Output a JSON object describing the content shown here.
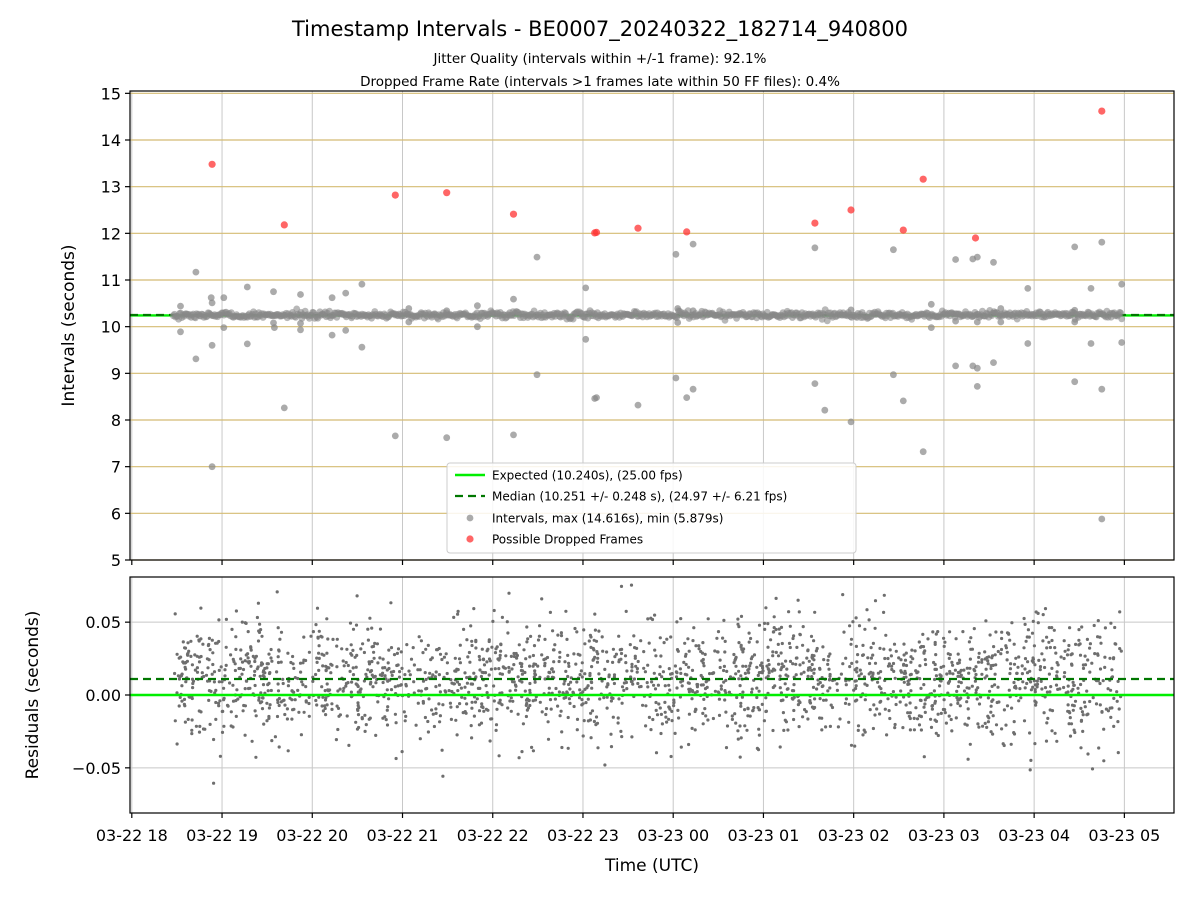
{
  "chart_data": {
    "type": "scatter",
    "title": "Timestamp Intervals - BE0007_20240322_182714_940800",
    "subtitle_lines": [
      "Jitter Quality (intervals within +/-1 frame): 92.1%",
      "Dropped Frame Rate (intervals >1 frames late within 50 FF files): 0.4%"
    ],
    "xlabel": "Time (UTC)",
    "x_tick_labels": [
      "03-22 18",
      "03-22 19",
      "03-22 20",
      "03-22 21",
      "03-22 22",
      "03-22 23",
      "03-23 00",
      "03-23 01",
      "03-23 02",
      "03-23 03",
      "03-23 04",
      "03-23 05"
    ],
    "x_ticks_hours": [
      18,
      19,
      20,
      21,
      22,
      23,
      24,
      25,
      26,
      27,
      28,
      29
    ],
    "xlim_hours": [
      17.98,
      29.55
    ],
    "data_range_hours": [
      18.46,
      28.97
    ],
    "top": {
      "ylabel": "Intervals (seconds)",
      "ylim": [
        5,
        15.05
      ],
      "y_ticks": [
        5,
        6,
        7,
        8,
        9,
        10,
        11,
        12,
        13,
        14,
        15
      ],
      "expected": 10.24,
      "median": 10.251,
      "legend": [
        "Expected (10.240s), (25.00 fps)",
        "Median (10.251 +/- 0.248 s), (24.97 +/- 6.21 fps)",
        "Intervals, max (14.616s), min (5.879s)",
        "Possible Dropped Frames"
      ],
      "legend_position": "lower-center",
      "dropped_frames": [
        [
          18.89,
          13.48
        ],
        [
          19.69,
          12.18
        ],
        [
          20.92,
          12.82
        ],
        [
          21.49,
          12.87
        ],
        [
          22.23,
          12.41
        ],
        [
          23.13,
          12.01
        ],
        [
          23.15,
          12.02
        ],
        [
          23.61,
          12.11
        ],
        [
          24.15,
          12.03
        ],
        [
          25.57,
          12.22
        ],
        [
          25.97,
          12.5
        ],
        [
          26.55,
          12.07
        ],
        [
          26.77,
          13.16
        ],
        [
          27.35,
          11.9
        ],
        [
          28.75,
          14.62
        ]
      ],
      "outliers": [
        [
          18.54,
          10.44
        ],
        [
          18.54,
          9.89
        ],
        [
          18.71,
          11.17
        ],
        [
          18.71,
          9.31
        ],
        [
          18.88,
          10.62
        ],
        [
          18.89,
          10.51
        ],
        [
          18.89,
          9.6
        ],
        [
          18.89,
          7.0
        ],
        [
          19.02,
          10.62
        ],
        [
          19.02,
          9.98
        ],
        [
          19.28,
          10.85
        ],
        [
          19.28,
          9.63
        ],
        [
          19.57,
          10.75
        ],
        [
          19.57,
          10.08
        ],
        [
          19.58,
          9.98
        ],
        [
          19.69,
          8.26
        ],
        [
          19.87,
          10.69
        ],
        [
          19.87,
          10.07
        ],
        [
          19.87,
          9.93
        ],
        [
          20.22,
          10.62
        ],
        [
          20.22,
          9.82
        ],
        [
          20.37,
          10.72
        ],
        [
          20.37,
          9.92
        ],
        [
          20.55,
          10.91
        ],
        [
          20.55,
          9.56
        ],
        [
          20.92,
          7.66
        ],
        [
          21.07,
          10.39
        ],
        [
          21.07,
          10.1
        ],
        [
          21.49,
          10.34
        ],
        [
          21.49,
          7.62
        ],
        [
          21.83,
          10.45
        ],
        [
          21.83,
          10.0
        ],
        [
          22.23,
          10.59
        ],
        [
          22.23,
          7.68
        ],
        [
          22.49,
          11.49
        ],
        [
          22.49,
          8.97
        ],
        [
          23.03,
          10.83
        ],
        [
          23.03,
          9.73
        ],
        [
          23.13,
          8.46
        ],
        [
          23.15,
          8.48
        ],
        [
          23.61,
          8.32
        ],
        [
          24.03,
          11.55
        ],
        [
          24.03,
          8.9
        ],
        [
          24.05,
          10.39
        ],
        [
          24.05,
          10.09
        ],
        [
          24.15,
          8.48
        ],
        [
          24.22,
          11.77
        ],
        [
          24.22,
          8.66
        ],
        [
          24.22,
          10.34
        ],
        [
          25.57,
          11.69
        ],
        [
          25.57,
          8.78
        ],
        [
          25.68,
          8.21
        ],
        [
          25.97,
          7.96
        ],
        [
          25.97,
          10.36
        ],
        [
          26.44,
          11.65
        ],
        [
          26.44,
          8.97
        ],
        [
          26.55,
          8.41
        ],
        [
          26.77,
          7.32
        ],
        [
          26.86,
          10.48
        ],
        [
          26.86,
          9.98
        ],
        [
          27.13,
          11.44
        ],
        [
          27.13,
          9.16
        ],
        [
          27.13,
          10.12
        ],
        [
          27.32,
          11.45
        ],
        [
          27.32,
          9.16
        ],
        [
          27.37,
          11.49
        ],
        [
          27.37,
          9.11
        ],
        [
          27.37,
          8.72
        ],
        [
          27.37,
          10.1
        ],
        [
          27.55,
          11.38
        ],
        [
          27.55,
          9.23
        ],
        [
          27.63,
          10.39
        ],
        [
          27.63,
          10.1
        ],
        [
          27.93,
          10.82
        ],
        [
          27.93,
          9.64
        ],
        [
          28.45,
          11.71
        ],
        [
          28.45,
          8.82
        ],
        [
          28.45,
          10.35
        ],
        [
          28.45,
          10.1
        ],
        [
          28.63,
          10.82
        ],
        [
          28.63,
          9.64
        ],
        [
          28.75,
          11.81
        ],
        [
          28.75,
          8.66
        ],
        [
          28.75,
          5.879
        ],
        [
          28.97,
          10.91
        ],
        [
          28.97,
          9.66
        ]
      ]
    },
    "bottom": {
      "ylabel": "Residuals (seconds)",
      "ylim": [
        -0.081,
        0.081
      ],
      "y_ticks": [
        -0.05,
        0,
        0.05
      ],
      "y_tick_labels": [
        "−0.05",
        "0.00",
        "0.05"
      ],
      "expected": 0.0,
      "median": 0.011,
      "residual_spread": 0.02,
      "residual_points": 2200
    },
    "colors": {
      "expected": "#00ee00",
      "median": "#007700",
      "intervals": "#888888",
      "dropped": "#ff3333",
      "grid_major_y": "#d4bb73",
      "grid_x": "#c8c8c8",
      "residual_points": "#6e6e6e"
    }
  }
}
